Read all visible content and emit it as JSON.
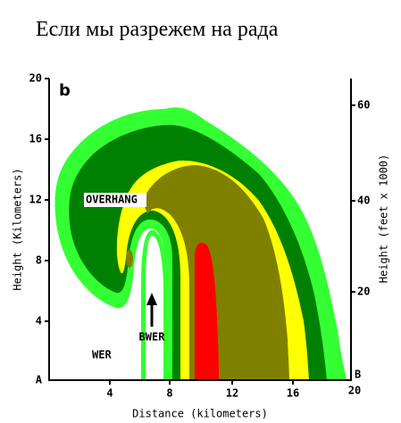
{
  "text": {
    "line": "Если мы разрежем на рада"
  },
  "figure": {
    "panel_label": "b",
    "y_axis_label": "Height (Kilometers)",
    "y_ticks": [
      "20",
      "16",
      "12",
      "8",
      "4",
      "A"
    ],
    "x_axis_label": "Distance (kilometers)",
    "x_ticks": [
      "4",
      "8",
      "12",
      "16",
      "20"
    ],
    "y2_axis_label": "Height (feet x 1000)",
    "y2_ticks": [
      "60",
      "40",
      "20",
      "B"
    ],
    "annotations": [
      "OVERHANG",
      "BWER",
      "WER"
    ]
  }
}
